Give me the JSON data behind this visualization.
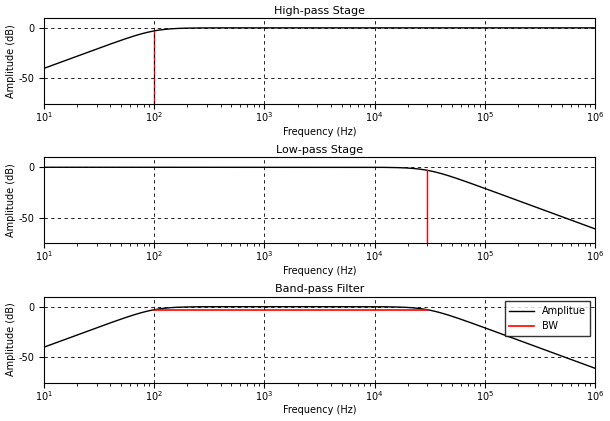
{
  "titles": [
    "High-pass Stage",
    "Low-pass Stage",
    "Band-pass Filter"
  ],
  "xlabel": "Frequency (Hz)",
  "ylabel": "Amplitude (dB)",
  "xlim": [
    10,
    1000000
  ],
  "ylim": [
    -75,
    10
  ],
  "yticks": [
    -50,
    0
  ],
  "hp_fc": 100,
  "lp_fc": 30000,
  "background_color": "#ffffff",
  "line_color": "#000000",
  "red_color": "#ff0000",
  "grid_color": "#000000",
  "legend_labels": [
    "Amplitue",
    "BW"
  ],
  "title_fontsize": 8,
  "label_fontsize": 7,
  "tick_fontsize": 7,
  "figsize": [
    6.1,
    4.21
  ],
  "dpi": 100,
  "vlines_x": [
    10,
    100,
    1000,
    10000,
    100000
  ],
  "hlines_y": [
    0,
    -50
  ]
}
